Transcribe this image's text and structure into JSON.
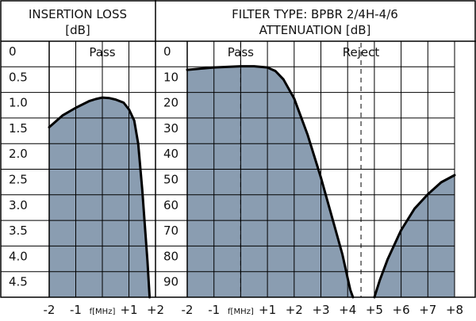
{
  "colors": {
    "fill": "#8a9db1",
    "line": "#000000",
    "grid": "#000000"
  },
  "chart_data": [
    {
      "type": "area",
      "title": [
        "INSERTION LOSS",
        "[dB]"
      ],
      "x_ticks": [
        "-2",
        "-1",
        "f[MHz]",
        "+1",
        "+2"
      ],
      "y_ticks": [
        "0",
        "0.5",
        "1.0",
        "1.5",
        "2.0",
        "2.5",
        "3.0",
        "3.5",
        "4.0",
        "4.5"
      ],
      "xlim": [
        -2,
        2
      ],
      "ylim": [
        0,
        5
      ],
      "y_reversed": true,
      "regions": [
        {
          "label": "Pass",
          "x": 0
        }
      ],
      "dashed_lines_x": [
        0
      ],
      "series": [
        {
          "x": [
            -2.0,
            -1.5,
            -1.0,
            -0.5,
            -0.25,
            0.0,
            0.25,
            0.5,
            0.8,
            1.0,
            1.2,
            1.35,
            1.5,
            1.6,
            1.7,
            1.78
          ],
          "y": [
            1.68,
            1.45,
            1.3,
            1.17,
            1.13,
            1.1,
            1.11,
            1.14,
            1.2,
            1.33,
            1.55,
            2.0,
            2.9,
            3.6,
            4.3,
            5.0
          ]
        }
      ]
    },
    {
      "type": "area",
      "title": [
        "FILTER TYPE: BPBR 2/4H-4/6",
        "ATTENUATION [dB]"
      ],
      "x_ticks": [
        "-2",
        "-1",
        "f[MHz]",
        "+1",
        "+2",
        "+3",
        "+4",
        "+5",
        "+6",
        "+7",
        "+8"
      ],
      "y_ticks": [
        "0",
        "10",
        "20",
        "30",
        "40",
        "50",
        "60",
        "70",
        "80",
        "90"
      ],
      "xlim": [
        -2,
        8
      ],
      "ylim": [
        0,
        100
      ],
      "y_reversed": true,
      "regions": [
        {
          "label": "Pass",
          "x": 0
        },
        {
          "label": "Reject",
          "x": 4.5
        }
      ],
      "dashed_lines_x": [
        0,
        4.5
      ],
      "series": [
        {
          "x": [
            -2.0,
            -1.0,
            0.0,
            0.5,
            1.0,
            1.3,
            1.6,
            2.0,
            2.5,
            3.0,
            3.5,
            3.8,
            4.0,
            4.1,
            4.2
          ],
          "y": [
            5.0,
            4.0,
            3.5,
            3.5,
            4.0,
            5.5,
            9.0,
            17.0,
            32.0,
            50.0,
            70.0,
            82.0,
            92.0,
            97.0,
            100.0
          ]
        },
        {
          "x": [
            5.0,
            5.2,
            5.5,
            6.0,
            6.5,
            7.0,
            7.5,
            8.0
          ],
          "y": [
            100.0,
            93.0,
            84.0,
            72.0,
            63.0,
            57.0,
            52.0,
            49.0
          ]
        }
      ]
    }
  ]
}
